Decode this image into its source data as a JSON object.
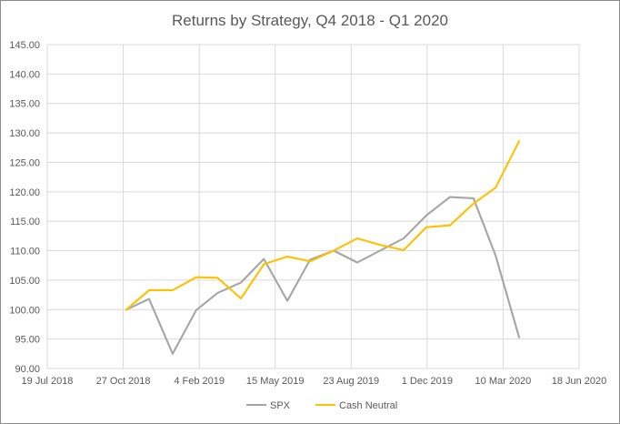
{
  "chart_data": {
    "type": "line",
    "title": "Returns by Strategy, Q4 2018  - Q1 2020",
    "xlabel": "",
    "ylabel": "",
    "x_tick_labels": [
      "19 Jul 2018",
      "27 Oct 2018",
      "4 Feb 2019",
      "15 May 2019",
      "23 Aug 2019",
      "1 Dec 2019",
      "10 Mar 2020",
      "18 Jun 2020"
    ],
    "x_tick_dates": [
      "2018-07-19",
      "2018-10-27",
      "2019-02-04",
      "2019-05-15",
      "2019-08-23",
      "2019-12-01",
      "2020-03-10",
      "2020-06-18"
    ],
    "xlim": [
      "2018-07-19",
      "2020-06-18"
    ],
    "ylim": [
      90,
      145
    ],
    "y_ticks": [
      "90.00",
      "95.00",
      "100.00",
      "105.00",
      "110.00",
      "115.00",
      "120.00",
      "125.00",
      "130.00",
      "135.00",
      "140.00",
      "145.00"
    ],
    "y_tick_values": [
      90,
      95,
      100,
      105,
      110,
      115,
      120,
      125,
      130,
      135,
      140,
      145
    ],
    "grid": "horizontal and vertical",
    "legend_position": "bottom",
    "series": [
      {
        "name": "SPX",
        "color": "#A5A5A5",
        "points": [
          {
            "x": "2018-10-31",
            "y": 100.0
          },
          {
            "x": "2018-11-30",
            "y": 101.8
          },
          {
            "x": "2018-12-31",
            "y": 92.5
          },
          {
            "x": "2019-01-31",
            "y": 99.9
          },
          {
            "x": "2019-02-28",
            "y": 102.8
          },
          {
            "x": "2019-03-31",
            "y": 104.6
          },
          {
            "x": "2019-04-30",
            "y": 108.6
          },
          {
            "x": "2019-05-31",
            "y": 101.5
          },
          {
            "x": "2019-06-30",
            "y": 108.5
          },
          {
            "x": "2019-07-31",
            "y": 110.0
          },
          {
            "x": "2019-08-31",
            "y": 108.0
          },
          {
            "x": "2019-09-30",
            "y": 110.0
          },
          {
            "x": "2019-10-31",
            "y": 112.1
          },
          {
            "x": "2019-11-30",
            "y": 116.0
          },
          {
            "x": "2019-12-31",
            "y": 119.1
          },
          {
            "x": "2020-01-31",
            "y": 118.9
          },
          {
            "x": "2020-02-29",
            "y": 109.2
          },
          {
            "x": "2020-03-31",
            "y": 95.3
          }
        ]
      },
      {
        "name": "Cash Neutral",
        "color": "#FFC000",
        "points": [
          {
            "x": "2018-10-31",
            "y": 100.0
          },
          {
            "x": "2018-11-30",
            "y": 103.3
          },
          {
            "x": "2018-12-31",
            "y": 103.3
          },
          {
            "x": "2019-01-31",
            "y": 105.5
          },
          {
            "x": "2019-02-28",
            "y": 105.4
          },
          {
            "x": "2019-03-31",
            "y": 101.9
          },
          {
            "x": "2019-04-30",
            "y": 107.7
          },
          {
            "x": "2019-05-31",
            "y": 109.0
          },
          {
            "x": "2019-06-30",
            "y": 108.2
          },
          {
            "x": "2019-07-31",
            "y": 110.0
          },
          {
            "x": "2019-08-31",
            "y": 112.1
          },
          {
            "x": "2019-09-30",
            "y": 111.0
          },
          {
            "x": "2019-10-31",
            "y": 110.1
          },
          {
            "x": "2019-11-30",
            "y": 114.0
          },
          {
            "x": "2019-12-31",
            "y": 114.3
          },
          {
            "x": "2020-01-31",
            "y": 118.0
          },
          {
            "x": "2020-02-29",
            "y": 120.7
          },
          {
            "x": "2020-03-31",
            "y": 128.6
          }
        ]
      }
    ]
  },
  "colors": {
    "gridline": "#D9D9D9",
    "text": "#595959",
    "frame": "#8C8C8C"
  }
}
